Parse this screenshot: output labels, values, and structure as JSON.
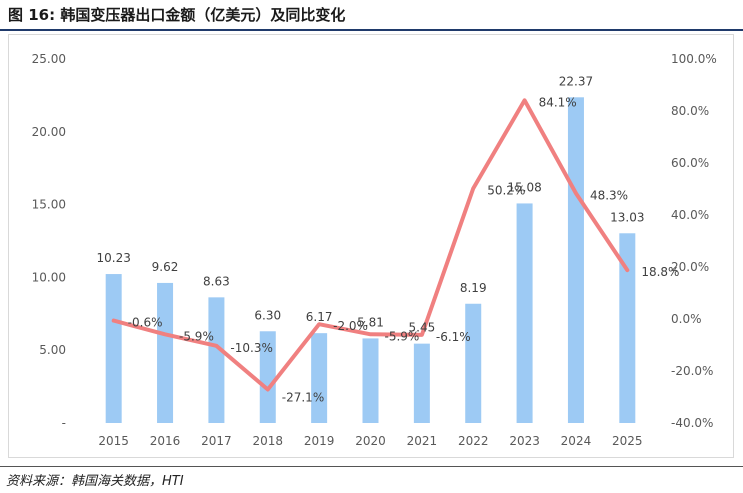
{
  "title": "图 16:  韩国变压器出口金额（亿美元）及同比变化",
  "source": "资料来源：韩国海关数据，HTI",
  "colors": {
    "bar": "#9dcaf4",
    "line": "#f08080",
    "title_rule": "#1f3a6b"
  },
  "chart_data": {
    "type": "bar+line",
    "categories": [
      "2015",
      "2016",
      "2017",
      "2018",
      "2019",
      "2020",
      "2021",
      "2022",
      "2023",
      "2024",
      "2025"
    ],
    "series": [
      {
        "name": "出口金额（亿美元）",
        "type": "bar",
        "axis": "left",
        "values": [
          10.23,
          9.62,
          8.63,
          6.3,
          6.17,
          5.81,
          5.45,
          8.19,
          15.08,
          22.37,
          13.03
        ],
        "labels": [
          "10.23",
          "9.62",
          "8.63",
          "6.30",
          "6.17",
          "5.81",
          "5.45",
          "8.19",
          "15.08",
          "22.37",
          "13.03"
        ]
      },
      {
        "name": "同比变化",
        "type": "line",
        "axis": "right",
        "values": [
          -0.6,
          -5.9,
          -10.3,
          -27.1,
          -2.0,
          -5.9,
          -6.1,
          50.2,
          84.1,
          48.3,
          18.8
        ],
        "labels": [
          "-0.6%",
          "-5.9%",
          "-10.3%",
          "-27.1%",
          "-2.0%",
          "-5.9%",
          "-6.1%",
          "50.2%",
          "84.1%",
          "48.3%",
          "18.8%"
        ]
      }
    ],
    "y_left": {
      "range": [
        0,
        25
      ],
      "ticks": [
        0,
        5,
        10,
        15,
        20,
        25
      ],
      "tick_labels": [
        "-",
        "5.00",
        "10.00",
        "15.00",
        "20.00",
        "25.00"
      ]
    },
    "y_right": {
      "range": [
        -40,
        100
      ],
      "ticks": [
        -40,
        -20,
        0,
        20,
        40,
        60,
        80,
        100
      ],
      "tick_labels": [
        "-40.0%",
        "-20.0%",
        "0.0%",
        "20.0%",
        "40.0%",
        "60.0%",
        "80.0%",
        "100.0%"
      ]
    },
    "legend": "none",
    "grid": false
  }
}
